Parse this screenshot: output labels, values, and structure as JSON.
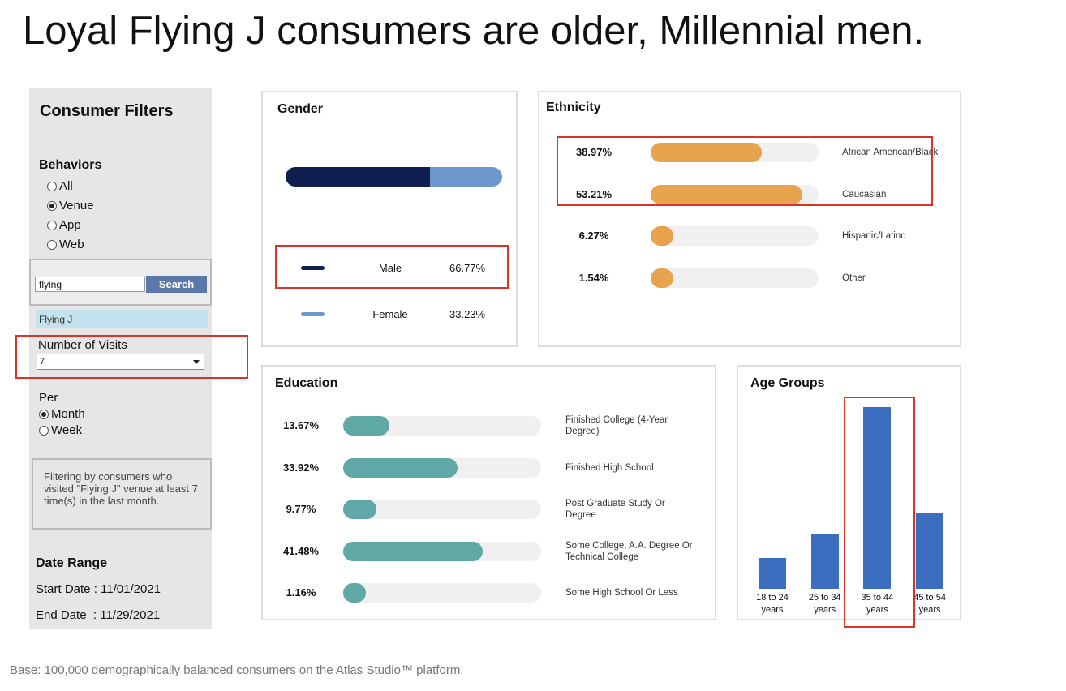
{
  "header": {
    "title": "Loyal Flying J consumers are older, Millennial men."
  },
  "sidebar": {
    "title": "Consumer Filters",
    "behaviors": {
      "label": "Behaviors",
      "options": [
        "All",
        "Venue",
        "App",
        "Web"
      ],
      "selected": 1
    },
    "search": {
      "query": "flying",
      "button": "Search",
      "result": "Flying J"
    },
    "visits": {
      "label": "Number of Visits",
      "value": "7"
    },
    "per": {
      "label": "Per",
      "options": [
        "Month",
        "Week"
      ],
      "selected": 0
    },
    "note": "Filtering by consumers who visited \"Flying J\" venue at least 7 time(s) in the last month.",
    "date_range": {
      "label": "Date Range",
      "start": "Start Date : 11/01/2021",
      "end": "End Date  : 11/29/2021"
    }
  },
  "chart_data": [
    {
      "type": "stacked_bar",
      "title": "Gender",
      "categories": [
        "Male",
        "Female"
      ],
      "values": [
        66.77,
        33.23
      ],
      "value_labels": [
        "66.77%",
        "33.23%"
      ],
      "colors": [
        "#0f1f4f",
        "#6b97cc"
      ]
    },
    {
      "type": "progress_bar",
      "title": "Ethnicity",
      "categories": [
        "African American/Black",
        "Caucasian",
        "Hispanic/Latino",
        "Other"
      ],
      "values": [
        38.97,
        53.21,
        6.27,
        1.54
      ],
      "value_labels": [
        "38.97%",
        "53.21%",
        "6.27%",
        "1.54%"
      ],
      "color": "#e8a34f"
    },
    {
      "type": "progress_bar",
      "title": "Education",
      "categories": [
        "Finished College (4-Year Degree)",
        "Finished High School",
        "Post Graduate Study Or Degree",
        "Some College, A.A. Degree Or Technical College",
        "Some High School Or Less"
      ],
      "values": [
        13.67,
        33.92,
        9.77,
        41.48,
        1.16
      ],
      "value_labels": [
        "13.67%",
        "33.92%",
        "9.77%",
        "41.48%",
        "1.16%"
      ],
      "color": "#5fa8a6"
    },
    {
      "type": "bar",
      "title": "Age Groups",
      "categories": [
        "18 to 24 years",
        "25 to 34 years",
        "35 to 44 years",
        "45 to 54 years"
      ],
      "values": [
        9,
        16,
        53,
        22
      ],
      "color": "#3c6ebf"
    }
  ],
  "footer": {
    "text": "Base: 100,000 demographically balanced consumers on the Atlas Studio™ platform."
  }
}
